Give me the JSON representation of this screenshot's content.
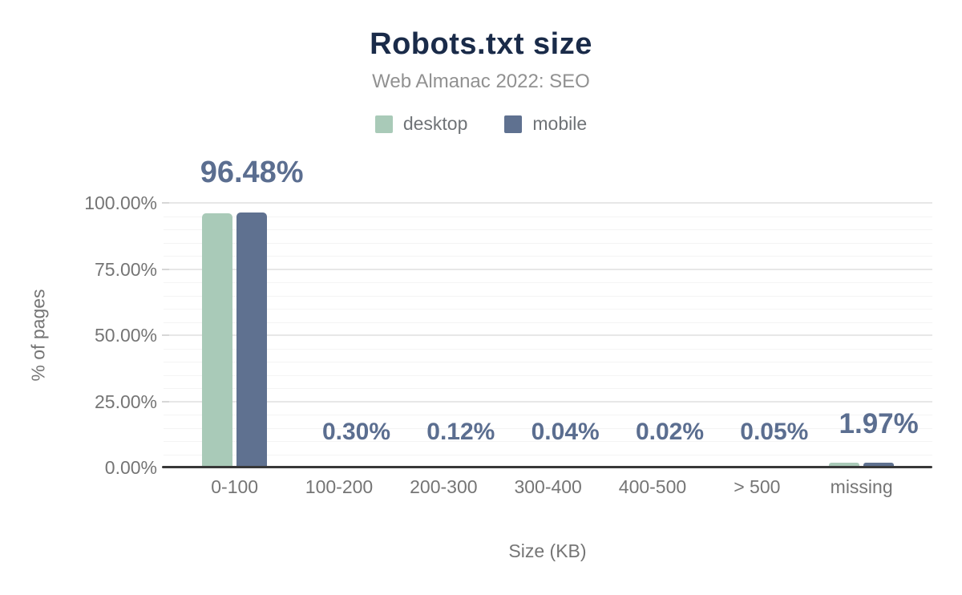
{
  "chart_data": {
    "type": "bar",
    "title": "Robots.txt size",
    "subtitle": "Web Almanac 2022: SEO",
    "xlabel": "Size (KB)",
    "ylabel": "% of pages",
    "categories": [
      "0-100",
      "100-200",
      "200-300",
      "300-400",
      "400-500",
      "> 500",
      "missing"
    ],
    "series": [
      {
        "name": "desktop",
        "color": "#a9cab8",
        "values": [
          96.1,
          0.28,
          0.11,
          0.04,
          0.02,
          0.05,
          1.9
        ]
      },
      {
        "name": "mobile",
        "color": "#5f7190",
        "values": [
          96.48,
          0.3,
          0.12,
          0.04,
          0.02,
          0.05,
          1.97
        ]
      }
    ],
    "data_labels": [
      "96.48%",
      "0.30%",
      "0.12%",
      "0.04%",
      "0.02%",
      "0.05%",
      "1.97%"
    ],
    "data_label_series": "mobile",
    "yticks": [
      {
        "value": 100,
        "label": "100.00%"
      },
      {
        "value": 75,
        "label": "75.00%"
      },
      {
        "value": 50,
        "label": "50.00%"
      },
      {
        "value": 25,
        "label": "25.00%"
      },
      {
        "value": 0,
        "label": "0.00%"
      }
    ],
    "ylim": [
      0,
      100
    ],
    "grid": {
      "major_step": 25,
      "minor_step": 5
    },
    "legend_position": "top",
    "colors": {
      "title": "#1a2b49",
      "subtitle": "#919191",
      "legend_text": "#6f7377",
      "tick_text": "#757575",
      "axis_title_text": "#757575",
      "data_label": "#5b6e90",
      "axis_line": "#383838",
      "gridline_major": "#e7e7e7",
      "gridline_minor": "#f4f4f4"
    }
  }
}
